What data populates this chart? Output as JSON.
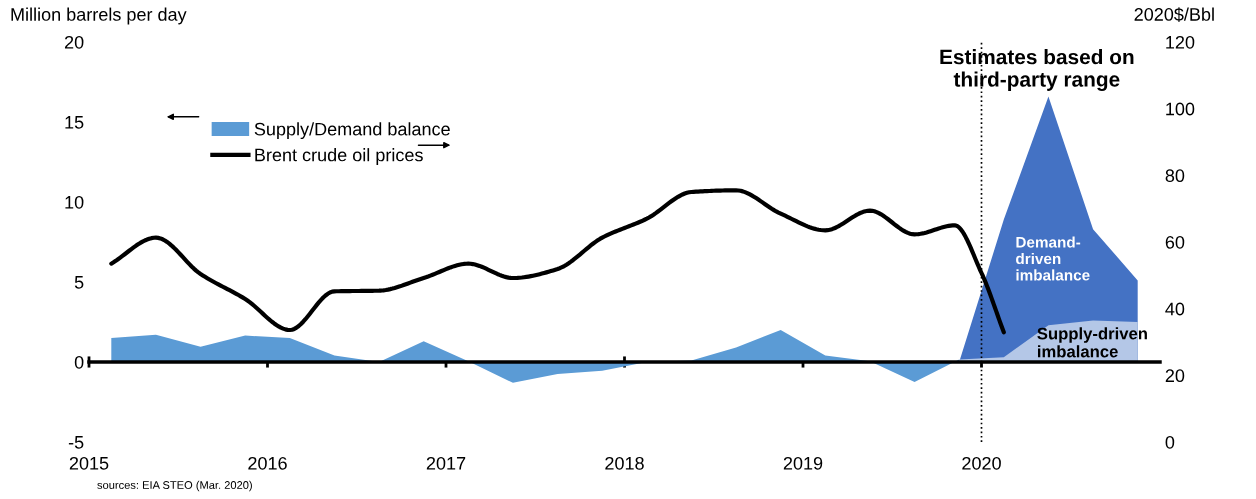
{
  "chart_data": {
    "type": "area",
    "ylabel": "Million barrels per day",
    "y2label": "2020$/Bbl",
    "xlim": [
      2015,
      2021
    ],
    "xticks": [
      2015,
      2016,
      2017,
      2018,
      2019,
      2020
    ],
    "ylim": [
      -5,
      20
    ],
    "yticks": [
      -5,
      0,
      5,
      10,
      15,
      20
    ],
    "y2lim": [
      0,
      120
    ],
    "y2ticks": [
      0,
      20,
      40,
      60,
      80,
      100,
      120
    ],
    "grid": false,
    "legend": "top left",
    "series": [
      {
        "name": "Supply/Demand balance",
        "axis": "y",
        "color": "#5b9bd5",
        "x": [
          2015.125,
          2015.375,
          2015.625,
          2015.875,
          2016.125,
          2016.375,
          2016.625,
          2016.875,
          2017.125,
          2017.375,
          2017.625,
          2017.875,
          2018.125,
          2018.375,
          2018.625,
          2018.875,
          2019.125,
          2019.375,
          2019.625,
          2019.875
        ],
        "values": [
          1.5,
          1.7,
          0.95,
          1.65,
          1.5,
          0.4,
          0.0,
          1.3,
          0.05,
          -1.3,
          -0.75,
          -0.55,
          0.0,
          0.1,
          0.9,
          2.0,
          0.4,
          0.05,
          -1.25,
          0.15
        ]
      },
      {
        "axis": "y",
        "color": "#4472c4",
        "x": [
          2019.875,
          2020.125,
          2020.375,
          2020.625,
          2020.875
        ],
        "values": [
          0.0,
          8.9,
          16.6,
          8.3,
          5.1
        ]
      },
      {
        "axis": "y",
        "color": "#b4c7e7",
        "x": [
          2019.875,
          2020.125,
          2020.375,
          2020.625,
          2020.875
        ],
        "values": [
          0.15,
          0.3,
          2.3,
          2.6,
          2.5
        ]
      },
      {
        "name": "Brent crude oil prices",
        "type": "line",
        "axis": "y2",
        "color": "#000000",
        "line_style": "solid",
        "x": [
          2015.125,
          2015.375,
          2015.625,
          2015.875,
          2016.125,
          2016.375,
          2016.625,
          2016.875,
          2017.125,
          2017.375,
          2017.625,
          2017.875,
          2018.125,
          2018.375,
          2018.625,
          2018.875,
          2019.125,
          2019.375,
          2019.625,
          2019.85,
          2020.0,
          2020.125
        ],
        "values": [
          53.5,
          61.3,
          50.4,
          42.9,
          33.6,
          45.2,
          45.4,
          49.2,
          53.5,
          49.2,
          51.9,
          61.3,
          67,
          75,
          75.5,
          68.5,
          63.5,
          69.4,
          62.3,
          65,
          50.7,
          32.9
        ]
      }
    ],
    "ref_lines": [
      {
        "axis": "x",
        "value": 2020,
        "line_style": "dotted",
        "color": "#000000"
      }
    ],
    "annotations": [
      "Estimates based on\nthird-party range",
      "Demand-\ndriven\nimbalance",
      "Supply-driven\nimbalance",
      "sources: EIA STEO (Mar. 2020)"
    ]
  }
}
